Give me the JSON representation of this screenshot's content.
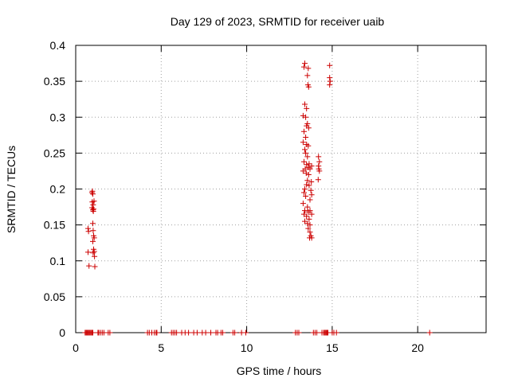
{
  "chart_data": {
    "type": "scatter",
    "title": "Day 129 of 2023, SRMTID for receiver uaib",
    "xlabel": "GPS time / hours",
    "ylabel": "SRMTID / TECUs",
    "xlim": [
      0,
      24
    ],
    "ylim": [
      0,
      0.4
    ],
    "xticks": [
      0,
      5,
      10,
      15,
      20
    ],
    "yticks": [
      0,
      0.05,
      0.1,
      0.15,
      0.2,
      0.25,
      0.3,
      0.35,
      0.4
    ],
    "xtick_labels": [
      "0",
      "5",
      "10",
      "15",
      "20"
    ],
    "ytick_labels": [
      "0",
      "0.05",
      "0.1",
      "0.15",
      "0.2",
      "0.25",
      "0.3",
      "0.35",
      "0.4"
    ],
    "grid": true,
    "marker": "+",
    "color": "#cc0000",
    "series": [
      {
        "name": "SRMTID",
        "points": [
          [
            0.72,
            0.145
          ],
          [
            0.75,
            0.141
          ],
          [
            0.72,
            0.112
          ],
          [
            0.78,
            0.093
          ],
          [
            0.95,
            0.195
          ],
          [
            0.98,
            0.197
          ],
          [
            1.0,
            0.193
          ],
          [
            0.97,
            0.182
          ],
          [
            1.02,
            0.178
          ],
          [
            0.96,
            0.174
          ],
          [
            1.0,
            0.171
          ],
          [
            1.03,
            0.169
          ],
          [
            1.05,
            0.172
          ],
          [
            1.0,
            0.152
          ],
          [
            1.02,
            0.142
          ],
          [
            1.05,
            0.135
          ],
          [
            1.08,
            0.132
          ],
          [
            1.0,
            0.127
          ],
          [
            1.05,
            0.116
          ],
          [
            1.08,
            0.113
          ],
          [
            1.02,
            0.111
          ],
          [
            1.1,
            0.106
          ],
          [
            1.12,
            0.092
          ],
          [
            1.07,
            0.183
          ],
          [
            13.35,
            0.37
          ],
          [
            13.4,
            0.375
          ],
          [
            13.6,
            0.368
          ],
          [
            13.55,
            0.358
          ],
          [
            13.58,
            0.345
          ],
          [
            13.62,
            0.342
          ],
          [
            13.4,
            0.318
          ],
          [
            13.5,
            0.312
          ],
          [
            13.3,
            0.302
          ],
          [
            13.45,
            0.3
          ],
          [
            13.55,
            0.291
          ],
          [
            13.5,
            0.288
          ],
          [
            13.62,
            0.285
          ],
          [
            13.35,
            0.28
          ],
          [
            13.45,
            0.272
          ],
          [
            13.3,
            0.265
          ],
          [
            13.5,
            0.262
          ],
          [
            13.6,
            0.26
          ],
          [
            13.4,
            0.255
          ],
          [
            13.45,
            0.25
          ],
          [
            13.55,
            0.245
          ],
          [
            13.65,
            0.235
          ],
          [
            13.35,
            0.238
          ],
          [
            13.5,
            0.234
          ],
          [
            13.6,
            0.23
          ],
          [
            13.42,
            0.228
          ],
          [
            13.48,
            0.222
          ],
          [
            13.3,
            0.225
          ],
          [
            13.55,
            0.212
          ],
          [
            13.65,
            0.205
          ],
          [
            13.4,
            0.2
          ],
          [
            13.5,
            0.206
          ],
          [
            13.35,
            0.195
          ],
          [
            13.45,
            0.19
          ],
          [
            13.75,
            0.198
          ],
          [
            13.7,
            0.185
          ],
          [
            13.8,
            0.192
          ],
          [
            13.3,
            0.18
          ],
          [
            13.55,
            0.175
          ],
          [
            13.7,
            0.17
          ],
          [
            13.6,
            0.168
          ],
          [
            13.4,
            0.17
          ],
          [
            13.35,
            0.165
          ],
          [
            13.5,
            0.162
          ],
          [
            13.8,
            0.165
          ],
          [
            13.65,
            0.158
          ],
          [
            13.4,
            0.155
          ],
          [
            13.55,
            0.152
          ],
          [
            13.7,
            0.15
          ],
          [
            13.6,
            0.145
          ],
          [
            13.7,
            0.14
          ],
          [
            13.68,
            0.132
          ],
          [
            13.75,
            0.135
          ],
          [
            13.8,
            0.132
          ],
          [
            13.78,
            0.21
          ],
          [
            13.8,
            0.232
          ],
          [
            13.7,
            0.228
          ],
          [
            13.62,
            0.22
          ],
          [
            14.2,
            0.245
          ],
          [
            14.25,
            0.238
          ],
          [
            14.2,
            0.232
          ],
          [
            14.22,
            0.228
          ],
          [
            14.25,
            0.225
          ],
          [
            14.18,
            0.213
          ],
          [
            14.85,
            0.372
          ],
          [
            14.85,
            0.355
          ],
          [
            14.88,
            0.35
          ],
          [
            14.85,
            0.345
          ]
        ]
      }
    ],
    "zero_points_x": [
      0.55,
      0.6,
      0.65,
      0.7,
      0.75,
      0.8,
      0.85,
      0.9,
      0.95,
      1.0,
      1.3,
      1.35,
      1.45,
      1.55,
      1.65,
      1.9,
      2.0,
      4.2,
      4.3,
      4.45,
      4.6,
      4.7,
      4.75,
      5.6,
      5.7,
      5.8,
      5.9,
      6.2,
      6.4,
      6.6,
      6.9,
      7.1,
      7.4,
      7.6,
      7.9,
      8.2,
      8.3,
      8.5,
      8.6,
      9.2,
      9.3,
      9.7,
      9.95,
      12.85,
      12.95,
      13.05,
      13.9,
      14.0,
      14.1,
      14.4,
      14.5,
      14.55,
      14.6,
      14.65,
      14.7,
      14.75,
      15.0,
      15.1,
      15.25,
      20.7
    ]
  }
}
